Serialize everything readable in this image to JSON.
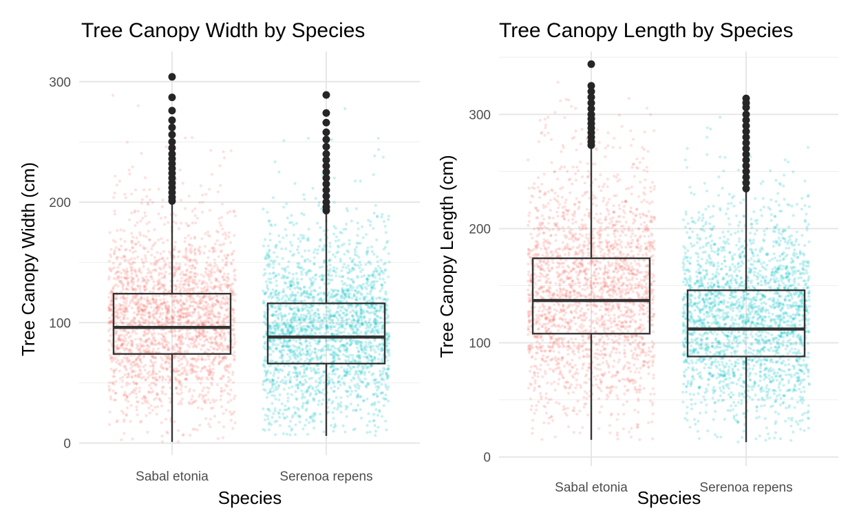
{
  "chart_data": [
    {
      "type": "boxplot",
      "title": "Tree Canopy Width by Species",
      "xlabel": "Species",
      "ylabel": "Tree Canopy Width (cm)",
      "ylim": [
        -10,
        325
      ],
      "yticks": [
        0,
        100,
        200,
        300
      ],
      "grid": true,
      "legend": "none",
      "jitter_points": true,
      "categories": [
        "Sabal etonia",
        "Serenoa repens"
      ],
      "colors": [
        "#F8766D",
        "#00BFC4"
      ],
      "boxes": [
        {
          "name": "Sabal etonia",
          "whisker_low": 1,
          "q1": 74,
          "median": 96,
          "q3": 124,
          "whisker_high": 200,
          "outliers_top": 304,
          "outlier_values": [
            304,
            287,
            276,
            268,
            262,
            256,
            250,
            245,
            240,
            236,
            232,
            228,
            224,
            220,
            216,
            212,
            208,
            204,
            201
          ]
        },
        {
          "name": "Serenoa repens",
          "whisker_low": 6,
          "q1": 66,
          "median": 88,
          "q3": 116,
          "whisker_high": 192,
          "outliers_top": 289,
          "outlier_values": [
            289,
            274,
            266,
            258,
            252,
            246,
            240,
            235,
            230,
            225,
            220,
            215,
            210,
            205,
            200,
            196,
            193
          ]
        }
      ],
      "jitter_ranges": [
        [
          1,
          304
        ],
        [
          6,
          289
        ]
      ]
    },
    {
      "type": "boxplot",
      "title": "Tree Canopy Length by Species",
      "xlabel": "Species",
      "ylabel": "Tree Canopy Length (cm)",
      "ylim": [
        -8,
        355
      ],
      "yticks": [
        0,
        100,
        200,
        300
      ],
      "grid": true,
      "legend": "none",
      "jitter_points": true,
      "categories": [
        "Sabal etonia",
        "Serenoa repens"
      ],
      "colors": [
        "#F8766D",
        "#00BFC4"
      ],
      "boxes": [
        {
          "name": "Sabal etonia",
          "whisker_low": 15,
          "q1": 108,
          "median": 137,
          "q3": 174,
          "whisker_high": 272,
          "outliers_top": 344,
          "outlier_values": [
            344,
            325,
            320,
            315,
            310,
            305,
            300,
            296,
            292,
            288,
            284,
            280,
            276,
            273
          ]
        },
        {
          "name": "Serenoa repens",
          "whisker_low": 13,
          "q1": 88,
          "median": 112,
          "q3": 146,
          "whisker_high": 233,
          "outliers_top": 314,
          "outlier_values": [
            314,
            310,
            306,
            300,
            295,
            290,
            285,
            280,
            275,
            270,
            265,
            260,
            255,
            250,
            245,
            240,
            235
          ]
        }
      ],
      "jitter_ranges": [
        [
          15,
          344
        ],
        [
          13,
          314
        ]
      ]
    }
  ]
}
